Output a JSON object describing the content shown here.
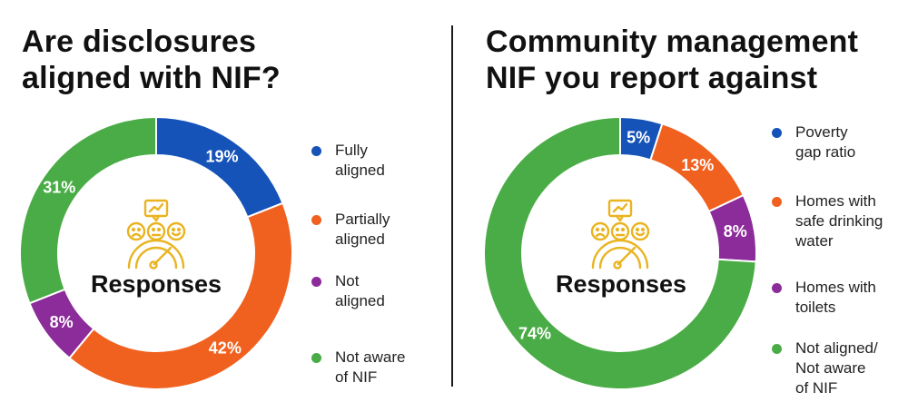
{
  "colors": {
    "blue": "#1553b8",
    "orange": "#f0611f",
    "purple": "#8c2b9a",
    "green": "#4aac46",
    "icon": "#e9b421"
  },
  "center_icon": "feedback-faces-gauge-icon",
  "chart_data": [
    {
      "type": "pie",
      "donut": true,
      "title_lines": [
        "Are disclosures",
        "aligned with NIF?"
      ],
      "center_label": "Responses",
      "categories": [
        "Fully aligned",
        "Partially aligned",
        "Not aligned",
        "Not aware of NIF"
      ],
      "legend_lines": [
        [
          "Fully",
          "aligned"
        ],
        [
          "Partially",
          "aligned"
        ],
        [
          "Not",
          "aligned"
        ],
        [
          "Not aware",
          "of NIF"
        ]
      ],
      "values": [
        19,
        42,
        8,
        31
      ],
      "labels": [
        "19%",
        "42%",
        "8%",
        "31%"
      ],
      "colors": [
        "#1553b8",
        "#f0611f",
        "#8c2b9a",
        "#4aac46"
      ]
    },
    {
      "type": "pie",
      "donut": true,
      "title_lines": [
        "Community management",
        "NIF you report against"
      ],
      "center_label": "Responses",
      "categories": [
        "Poverty gap ratio",
        "Homes with safe drinking water",
        "Homes with toilets",
        "Not aligned/ Not aware of NIF"
      ],
      "legend_lines": [
        [
          "Poverty",
          "gap ratio"
        ],
        [
          "Homes with",
          "safe drinking",
          "water"
        ],
        [
          "Homes with",
          "toilets"
        ],
        [
          "Not aligned/",
          "Not aware",
          "of NIF"
        ]
      ],
      "values": [
        5,
        13,
        8,
        74
      ],
      "labels": [
        "5%",
        "13%",
        "8%",
        "74%"
      ],
      "colors": [
        "#1553b8",
        "#f0611f",
        "#8c2b9a",
        "#4aac46"
      ]
    }
  ]
}
